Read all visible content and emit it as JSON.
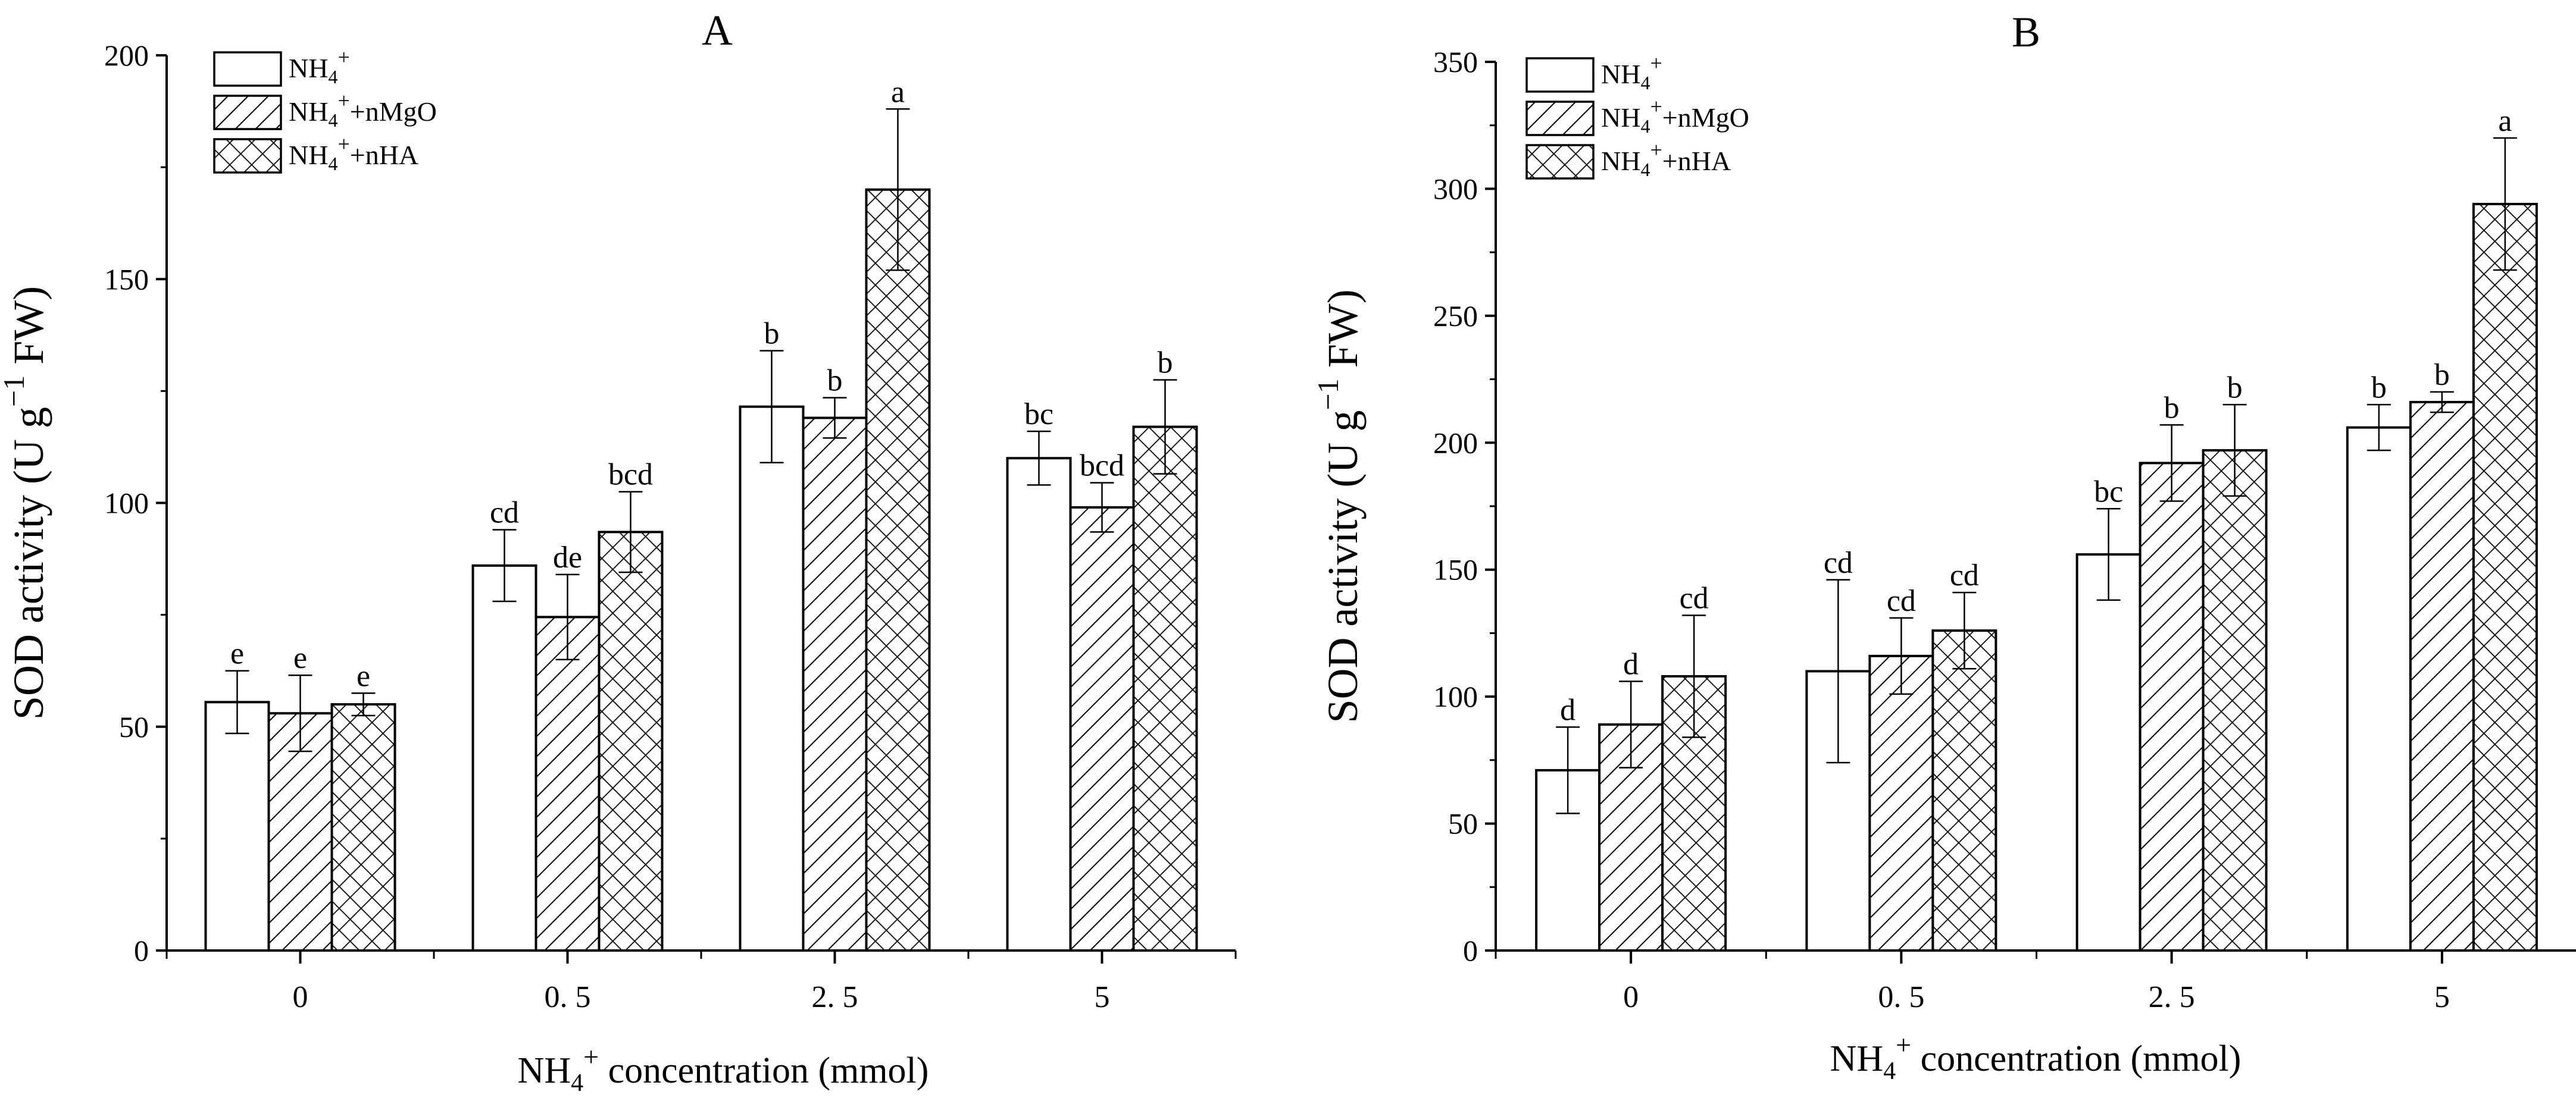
{
  "colors": {
    "axis": "#000000",
    "bar_fill": "#ffffff",
    "hatch": "#000000"
  },
  "chart_data": [
    {
      "type": "bar",
      "panel_label": "A",
      "title": "A",
      "xlabel": {
        "prefix": "NH",
        "sub": "4",
        "sup": "+",
        "suffix": " concentration (mmol)"
      },
      "ylabel": {
        "prefix": "SOD activity (U g",
        "sup": "−1",
        "suffix": " FW)"
      },
      "categories": [
        "0",
        "0. 5",
        "2. 5",
        "5"
      ],
      "ylim": [
        0,
        200
      ],
      "yticks": [
        0,
        50,
        100,
        150,
        200
      ],
      "legend_position": "top-left",
      "series": [
        {
          "name": "NH4+",
          "legend": {
            "base": "NH",
            "sub": "4",
            "sup": "+",
            "tail": ""
          },
          "pattern": "none",
          "values": [
            55.5,
            86,
            121.5,
            110
          ],
          "errors": [
            7,
            8,
            12.5,
            6
          ],
          "letters": [
            "e",
            "cd",
            "b",
            "bc"
          ]
        },
        {
          "name": "NH4+ +nMgO",
          "legend": {
            "base": "NH",
            "sub": "4",
            "sup": "+",
            "tail": "+nMgO"
          },
          "pattern": "diagonal",
          "values": [
            53,
            74.5,
            119,
            99
          ],
          "errors": [
            8.5,
            9.5,
            4.5,
            5.5
          ],
          "letters": [
            "e",
            "de",
            "b",
            "bcd"
          ]
        },
        {
          "name": "NH4+ +nHA",
          "legend": {
            "base": "NH",
            "sub": "4",
            "sup": "+",
            "tail": "+nHA"
          },
          "pattern": "crosshatch",
          "values": [
            55,
            93.5,
            170,
            117
          ],
          "errors": [
            2.5,
            9,
            18,
            10.5
          ],
          "letters": [
            "e",
            "bcd",
            "a",
            "b"
          ]
        }
      ]
    },
    {
      "type": "bar",
      "panel_label": "B",
      "title": "B",
      "xlabel": {
        "prefix": "NH",
        "sub": "4",
        "sup": "+",
        "suffix": " concentration (mmol)"
      },
      "ylabel": {
        "prefix": "SOD activity (U g",
        "sup": "−1",
        "suffix": " FW)"
      },
      "categories": [
        "0",
        "0. 5",
        "2. 5",
        "5"
      ],
      "ylim": [
        0,
        350
      ],
      "yticks": [
        0,
        50,
        100,
        150,
        200,
        250,
        300,
        350
      ],
      "legend_position": "top-left",
      "series": [
        {
          "name": "NH4+",
          "legend": {
            "base": "NH",
            "sub": "4",
            "sup": "+",
            "tail": ""
          },
          "pattern": "none",
          "values": [
            71,
            110,
            156,
            206
          ],
          "errors": [
            17,
            36,
            18,
            9
          ],
          "letters": [
            "d",
            "cd",
            "bc",
            "b"
          ]
        },
        {
          "name": "NH4+ +nMgO",
          "legend": {
            "base": "NH",
            "sub": "4",
            "sup": "+",
            "tail": "+nMgO"
          },
          "pattern": "diagonal",
          "values": [
            89,
            116,
            192,
            216
          ],
          "errors": [
            17,
            15,
            15,
            4
          ],
          "letters": [
            "d",
            "cd",
            "b",
            "b"
          ]
        },
        {
          "name": "NH4+ +nHA",
          "legend": {
            "base": "NH",
            "sub": "4",
            "sup": "+",
            "tail": "+nHA"
          },
          "pattern": "crosshatch",
          "values": [
            108,
            126,
            197,
            294
          ],
          "errors": [
            24,
            15,
            18,
            26
          ],
          "letters": [
            "cd",
            "cd",
            "b",
            "a"
          ]
        }
      ]
    }
  ]
}
